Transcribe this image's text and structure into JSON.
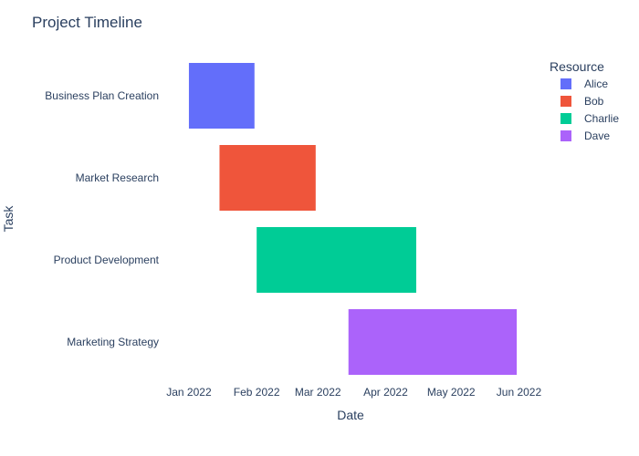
{
  "chart_data": {
    "type": "gantt",
    "title": "Project Timeline",
    "xlabel": "Date",
    "ylabel": "Task",
    "x_axis_type": "date",
    "x_range": [
      "2021-12-22",
      "2022-06-15"
    ],
    "x_ticks": [
      {
        "date": "2022-01-01",
        "label": "Jan 2022"
      },
      {
        "date": "2022-02-01",
        "label": "Feb 2022"
      },
      {
        "date": "2022-03-01",
        "label": "Mar 2022"
      },
      {
        "date": "2022-04-01",
        "label": "Apr 2022"
      },
      {
        "date": "2022-05-01",
        "label": "May 2022"
      },
      {
        "date": "2022-06-01",
        "label": "Jun 2022"
      }
    ],
    "grid": false,
    "legend": {
      "title": "Resource",
      "placement": "top-right",
      "entries": [
        {
          "name": "Alice",
          "color": "#636efa"
        },
        {
          "name": "Bob",
          "color": "#ef553b"
        },
        {
          "name": "Charlie",
          "color": "#00cc96"
        },
        {
          "name": "Dave",
          "color": "#ab63fa"
        }
      ]
    },
    "tasks": [
      {
        "task": "Business Plan Creation",
        "start": "2022-01-01",
        "end": "2022-01-31",
        "resource": "Alice"
      },
      {
        "task": "Market Research",
        "start": "2022-01-15",
        "end": "2022-02-28",
        "resource": "Bob"
      },
      {
        "task": "Product Development",
        "start": "2022-02-01",
        "end": "2022-04-15",
        "resource": "Charlie"
      },
      {
        "task": "Marketing Strategy",
        "start": "2022-03-15",
        "end": "2022-05-31",
        "resource": "Dave"
      }
    ]
  }
}
